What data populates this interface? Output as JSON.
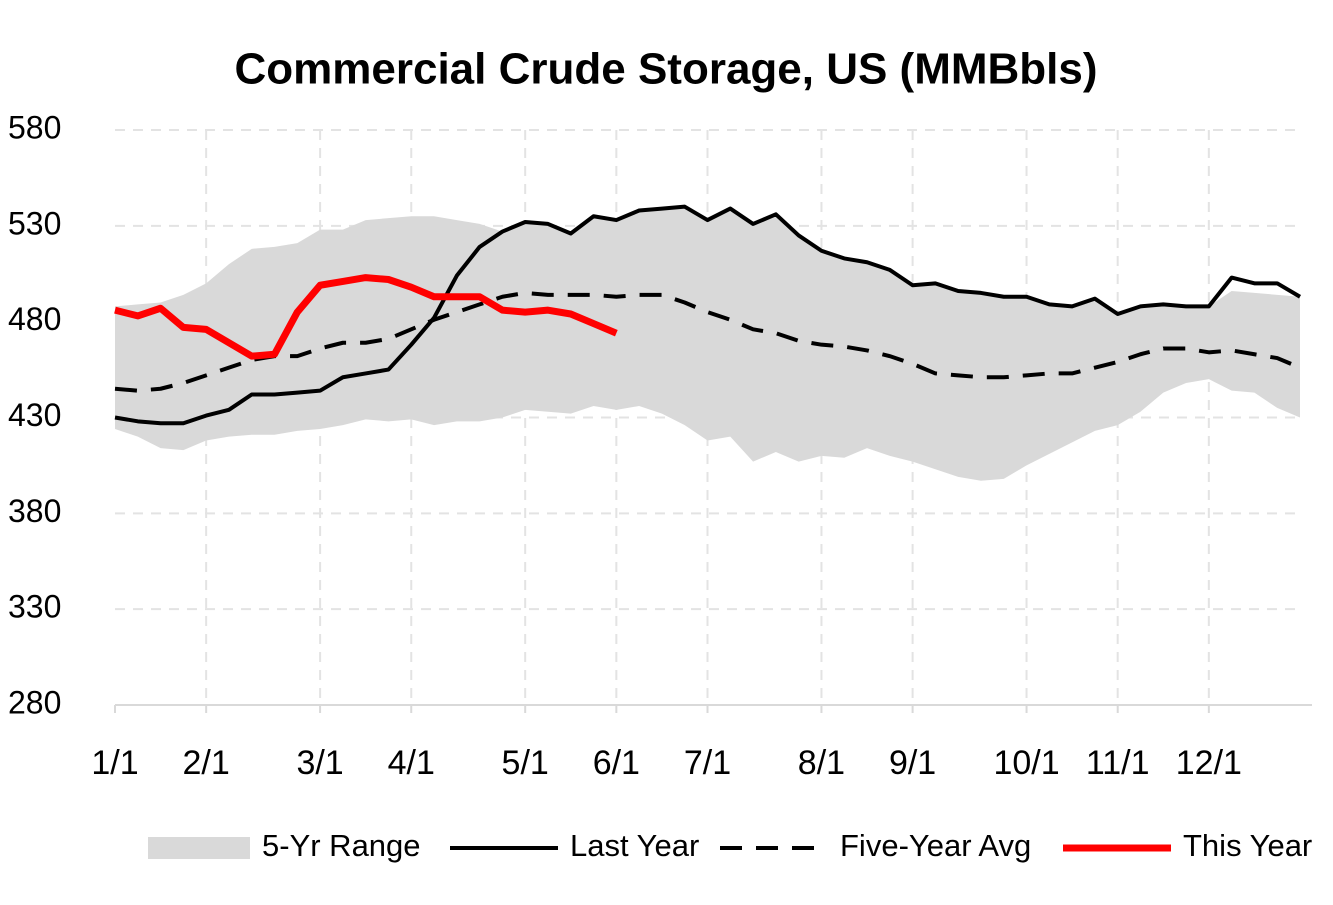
{
  "chart_data": {
    "type": "line",
    "title": "Commercial Crude Storage, US (MMBbls)",
    "categories": [
      "1/1",
      null,
      null,
      null,
      "2/1",
      null,
      null,
      null,
      null,
      "3/1",
      null,
      null,
      null,
      "4/1",
      null,
      null,
      null,
      null,
      "5/1",
      null,
      null,
      null,
      "6/1",
      null,
      null,
      null,
      "7/1",
      null,
      null,
      null,
      null,
      "8/1",
      null,
      null,
      null,
      "9/1",
      null,
      null,
      null,
      null,
      "10/1",
      null,
      null,
      null,
      "11/1",
      null,
      null,
      null,
      "12/1",
      null,
      null,
      null,
      null
    ],
    "series": [
      {
        "name": "5-Yr Range",
        "color": "#d9d9d9",
        "type": "area",
        "high": [
          488,
          489,
          490,
          494,
          500,
          510,
          518,
          519,
          521,
          528,
          528,
          533,
          534,
          535,
          535,
          533,
          531,
          527,
          532,
          531,
          526,
          535,
          533,
          538,
          539,
          540,
          533,
          539,
          531,
          536,
          525,
          517,
          513,
          511,
          507,
          499,
          500,
          496,
          495,
          493,
          493,
          489,
          488,
          492,
          484,
          488,
          489,
          488,
          488,
          496,
          495,
          494,
          493
        ],
        "low": [
          424,
          420,
          414,
          413,
          418,
          420,
          421,
          421,
          423,
          424,
          426,
          429,
          428,
          429,
          426,
          428,
          428,
          430,
          434,
          433,
          432,
          436,
          434,
          436,
          432,
          426,
          418,
          420,
          407,
          412,
          407,
          410,
          409,
          414,
          410,
          407,
          403,
          399,
          397,
          398,
          405,
          411,
          417,
          423,
          426,
          433,
          443,
          448,
          450,
          444,
          443,
          435,
          430
        ]
      },
      {
        "name": "Last Year",
        "color": "#000000",
        "dash": false,
        "width": 4,
        "values": [
          430,
          428,
          427,
          427,
          431,
          434,
          442,
          442,
          443,
          444,
          451,
          453,
          455,
          468,
          482,
          504,
          519,
          527,
          532,
          531,
          526,
          535,
          533,
          538,
          539,
          540,
          533,
          539,
          531,
          536,
          525,
          517,
          513,
          511,
          507,
          499,
          500,
          496,
          495,
          493,
          493,
          489,
          488,
          492,
          484,
          488,
          489,
          488,
          488,
          503,
          500,
          500,
          493
        ]
      },
      {
        "name": "Five-Year Avg",
        "color": "#000000",
        "dash": true,
        "width": 4,
        "values": [
          445,
          444,
          445,
          448,
          452,
          456,
          460,
          462,
          462,
          466,
          469,
          469,
          471,
          476,
          481,
          485,
          489,
          493,
          495,
          494,
          494,
          494,
          493,
          494,
          494,
          490,
          485,
          481,
          476,
          474,
          470,
          468,
          467,
          465,
          462,
          458,
          453,
          452,
          451,
          451,
          452,
          453,
          453,
          456,
          459,
          463,
          466,
          466,
          464,
          465,
          463,
          461,
          456
        ]
      },
      {
        "name": "This Year",
        "color": "#ff0000",
        "dash": false,
        "width": 7,
        "values": [
          486,
          483,
          487,
          477,
          476,
          469,
          462,
          463,
          485,
          499,
          501,
          503,
          502,
          498,
          493,
          493,
          493,
          486,
          485,
          486,
          484,
          479,
          474,
          null,
          null,
          null,
          null,
          null,
          null,
          null,
          null,
          null,
          null,
          null,
          null,
          null,
          null,
          null,
          null,
          null,
          null,
          null,
          null,
          null,
          null,
          null,
          null,
          null,
          null,
          null,
          null,
          null,
          null
        ]
      }
    ],
    "ylim": [
      280,
      580
    ],
    "yticks": [
      280,
      330,
      380,
      430,
      480,
      530,
      580
    ],
    "grid": true,
    "legend": "bottom"
  }
}
